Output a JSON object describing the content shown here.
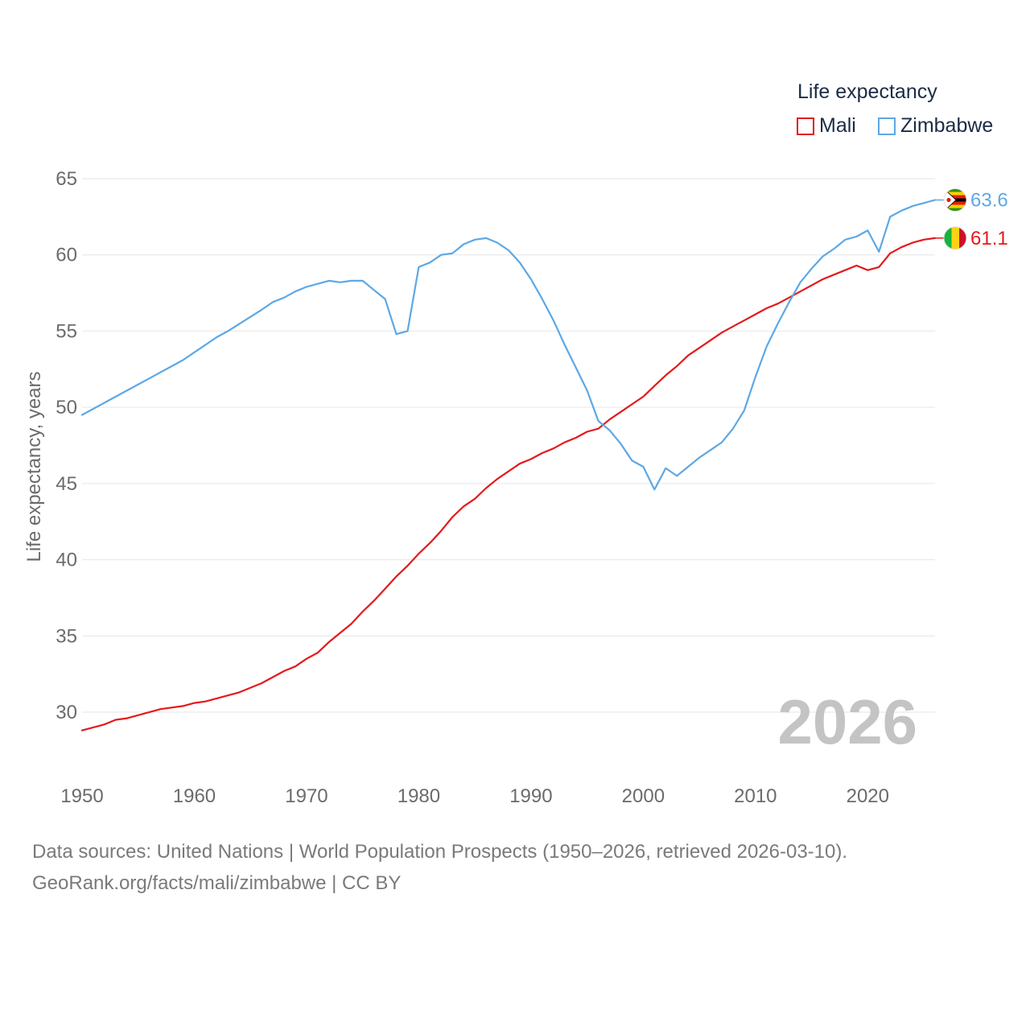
{
  "legend": {
    "title": "Life expectancy",
    "items": [
      {
        "name": "Mali",
        "color": "#e31a1c"
      },
      {
        "name": "Zimbabwe",
        "color": "#5ca8e6"
      }
    ]
  },
  "year_watermark": "2026",
  "footer": {
    "line1": "Data sources: United Nations | World Population Prospects (1950–2026, retrieved 2026-03-10).",
    "line2": "GeoRank.org/facts/mali/zimbabwe | CC BY"
  },
  "chart_data": {
    "type": "line",
    "title": "Life expectancy",
    "xlabel": "",
    "ylabel": "Life expectancy, years",
    "xlim": [
      1950,
      2026
    ],
    "ylim": [
      27,
      66
    ],
    "xticks": [
      1950,
      1960,
      1970,
      1980,
      1990,
      2000,
      2010,
      2020
    ],
    "yticks": [
      30,
      35,
      40,
      45,
      50,
      55,
      60,
      65
    ],
    "grid": true,
    "legend_position": "top-right",
    "end_labels": {
      "Mali": "61.1",
      "Zimbabwe": "63.6"
    },
    "series": [
      {
        "name": "Mali",
        "color": "#e31a1c",
        "x": [
          1950,
          1952,
          1953,
          1954,
          1955,
          1957,
          1959,
          1960,
          1961,
          1964,
          1966,
          1968,
          1969,
          1970,
          1971,
          1972,
          1974,
          1975,
          1976,
          1977,
          1978,
          1979,
          1980,
          1981,
          1982,
          1983,
          1984,
          1985,
          1986,
          1987,
          1988,
          1989,
          1990,
          1991,
          1992,
          1993,
          1994,
          1995,
          1996,
          1997,
          1998,
          1999,
          2000,
          2001,
          2002,
          2003,
          2004,
          2005,
          2006,
          2007,
          2008,
          2009,
          2010,
          2011,
          2012,
          2013,
          2014,
          2015,
          2016,
          2017,
          2018,
          2019,
          2020,
          2021,
          2022,
          2023,
          2024,
          2025,
          2026
        ],
        "y": [
          28.8,
          29.2,
          29.5,
          29.6,
          29.8,
          30.2,
          30.4,
          30.6,
          30.7,
          31.3,
          31.9,
          32.7,
          33.0,
          33.5,
          33.9,
          34.6,
          35.8,
          36.6,
          37.3,
          38.1,
          38.9,
          39.6,
          40.4,
          41.1,
          41.9,
          42.8,
          43.5,
          44.0,
          44.7,
          45.3,
          45.8,
          46.3,
          46.6,
          47.0,
          47.3,
          47.7,
          48.0,
          48.4,
          48.6,
          49.2,
          49.7,
          50.2,
          50.7,
          51.4,
          52.1,
          52.7,
          53.4,
          53.9,
          54.4,
          54.9,
          55.3,
          55.7,
          56.1,
          56.5,
          56.8,
          57.2,
          57.6,
          58.0,
          58.4,
          58.7,
          59.0,
          59.3,
          59.0,
          59.2,
          60.1,
          60.5,
          60.8,
          61.0,
          61.1
        ]
      },
      {
        "name": "Zimbabwe",
        "color": "#5ca8e6",
        "x": [
          1950,
          1953,
          1956,
          1959,
          1962,
          1963,
          1966,
          1967,
          1968,
          1969,
          1970,
          1971,
          1972,
          1973,
          1974,
          1975,
          1976,
          1977,
          1978,
          1979,
          1980,
          1981,
          1982,
          1983,
          1984,
          1985,
          1986,
          1987,
          1988,
          1989,
          1990,
          1991,
          1992,
          1993,
          1994,
          1995,
          1996,
          1997,
          1998,
          1999,
          2000,
          2001,
          2002,
          2003,
          2004,
          2005,
          2006,
          2007,
          2008,
          2009,
          2010,
          2011,
          2012,
          2013,
          2014,
          2015,
          2016,
          2017,
          2018,
          2019,
          2020,
          2021,
          2022,
          2023,
          2024,
          2025,
          2026
        ],
        "y": [
          49.5,
          50.7,
          51.9,
          53.1,
          54.6,
          55.0,
          56.4,
          56.9,
          57.2,
          57.6,
          57.9,
          58.1,
          58.3,
          58.2,
          58.3,
          58.3,
          57.7,
          57.1,
          54.8,
          55.0,
          59.2,
          59.5,
          60.0,
          60.1,
          60.7,
          61.0,
          61.1,
          60.8,
          60.3,
          59.5,
          58.4,
          57.1,
          55.7,
          54.1,
          52.6,
          51.1,
          49.1,
          48.5,
          47.6,
          46.5,
          46.1,
          44.6,
          46.0,
          45.5,
          46.1,
          46.7,
          47.2,
          47.7,
          48.6,
          49.8,
          52.0,
          54.0,
          55.5,
          56.9,
          58.2,
          59.1,
          59.9,
          60.4,
          61.0,
          61.2,
          61.6,
          60.2,
          62.5,
          62.9,
          63.2,
          63.4,
          63.6
        ]
      }
    ]
  }
}
